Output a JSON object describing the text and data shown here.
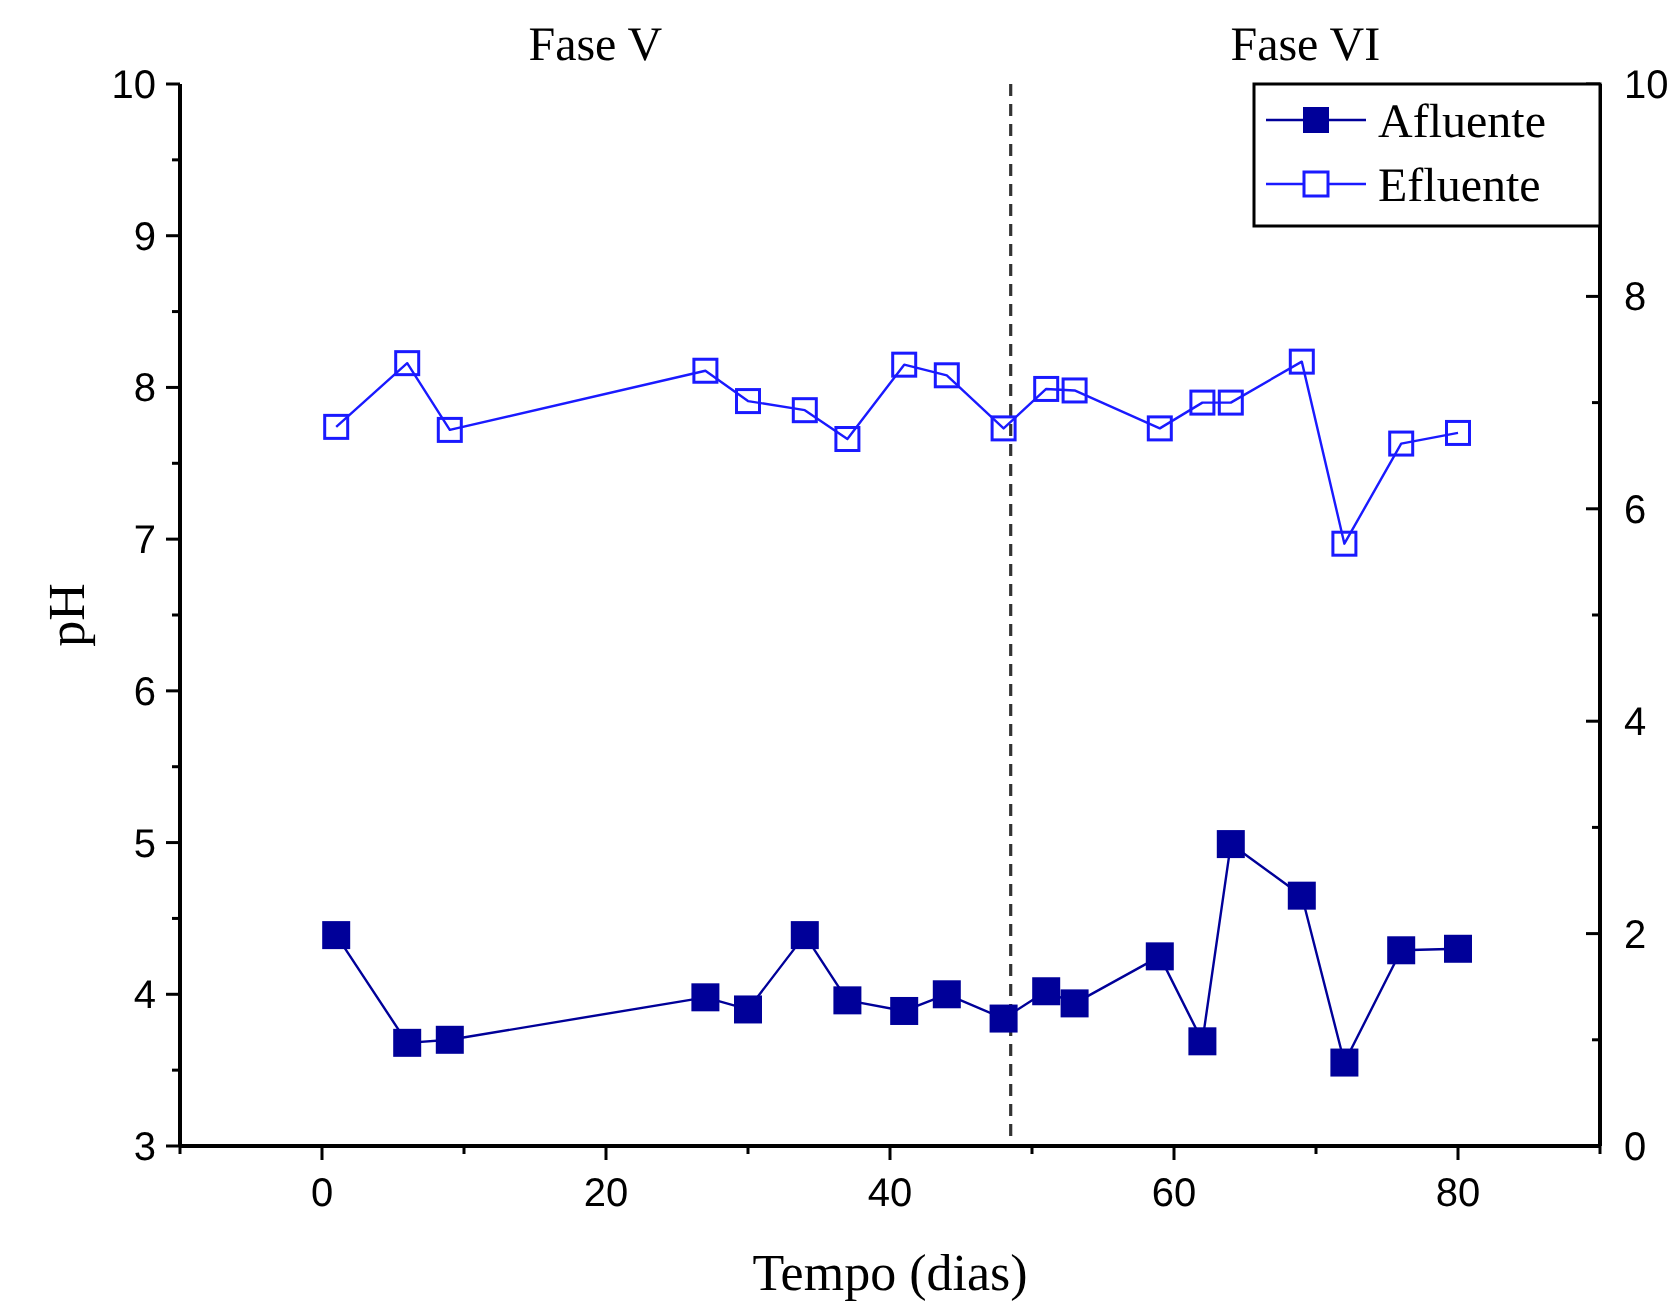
{
  "chart_data": {
    "type": "line",
    "xlabel": "Tempo (dias)",
    "ylabel": "pH",
    "x": [
      1,
      6,
      9,
      27,
      30,
      34,
      37,
      41,
      44,
      48,
      51,
      53,
      59,
      62,
      64,
      69,
      72,
      76,
      80
    ],
    "series": [
      {
        "name": "Afluente",
        "color": "#000099",
        "marker": "square",
        "values": [
          4.39,
          3.68,
          3.7,
          3.98,
          3.9,
          4.39,
          3.96,
          3.89,
          4.0,
          3.84,
          4.02,
          3.94,
          4.25,
          3.69,
          4.99,
          4.65,
          3.55,
          4.29,
          4.3
        ]
      },
      {
        "name": "Efluente",
        "color": "#1a1aff",
        "marker": "square_open",
        "values": [
          7.74,
          8.16,
          7.72,
          8.11,
          7.91,
          7.85,
          7.66,
          8.15,
          8.08,
          7.73,
          7.99,
          7.98,
          7.73,
          7.9,
          7.9,
          8.17,
          6.97,
          7.63,
          7.7
        ]
      }
    ],
    "xlim": [
      -10,
      90
    ],
    "xticks": [
      {
        "value": -10,
        "label": null
      },
      0,
      {
        "value": 10,
        "label": null
      },
      20,
      {
        "value": 30,
        "label": null
      },
      40,
      {
        "value": 50,
        "label": null
      },
      60,
      {
        "value": 70,
        "label": null
      },
      80,
      {
        "value": 90,
        "label": null
      }
    ],
    "ylim": [
      3,
      10
    ],
    "yticks": [
      3,
      {
        "value": 3.5,
        "label": null
      },
      4,
      {
        "value": 4.5,
        "label": null
      },
      5,
      {
        "value": 5.5,
        "label": null
      },
      6,
      {
        "value": 6.5,
        "label": null
      },
      7,
      {
        "value": 7.5,
        "label": null
      },
      8,
      {
        "value": 8.5,
        "label": null
      },
      9,
      {
        "value": 9.5,
        "label": null
      },
      10
    ],
    "y2lim": [
      0,
      10
    ],
    "y2ticks": [
      0,
      {
        "value": 1,
        "label": null
      },
      2,
      {
        "value": 3,
        "label": null
      },
      4,
      {
        "value": 5,
        "label": null
      },
      6,
      {
        "value": 7,
        "label": null
      },
      8,
      {
        "value": 9,
        "label": null
      },
      10
    ],
    "ref_lines": [
      {
        "axis": "x",
        "value": 48.5,
        "line_style": "dashed",
        "color": "#333333"
      }
    ],
    "annotations": [
      "Fase V",
      "Fase VI"
    ],
    "legend": "top right",
    "grid": false
  }
}
